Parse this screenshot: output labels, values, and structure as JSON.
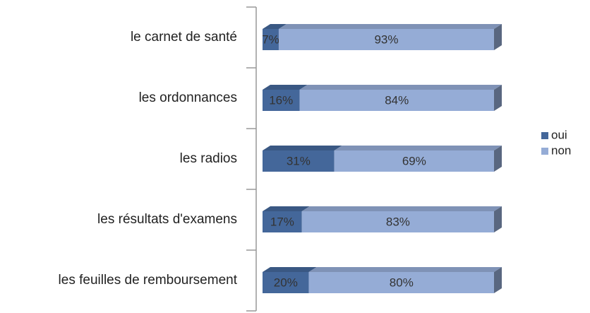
{
  "chart_data": {
    "type": "bar",
    "orientation": "horizontal",
    "stacked": true,
    "categories": [
      "le carnet de santé",
      "les ordonnances",
      "les radios",
      "les résultats d'examens",
      "les feuilles de remboursement"
    ],
    "series": [
      {
        "name": "oui",
        "color": "#44679a",
        "values": [
          7,
          16,
          31,
          17,
          20
        ],
        "value_labels": [
          "7%",
          "16%",
          "31%",
          "17%",
          "20%"
        ]
      },
      {
        "name": "non",
        "color": "#95acd6",
        "values": [
          93,
          84,
          69,
          83,
          80
        ],
        "value_labels": [
          "93%",
          "84%",
          "69%",
          "83%",
          "80%"
        ]
      }
    ],
    "legend": "right"
  }
}
